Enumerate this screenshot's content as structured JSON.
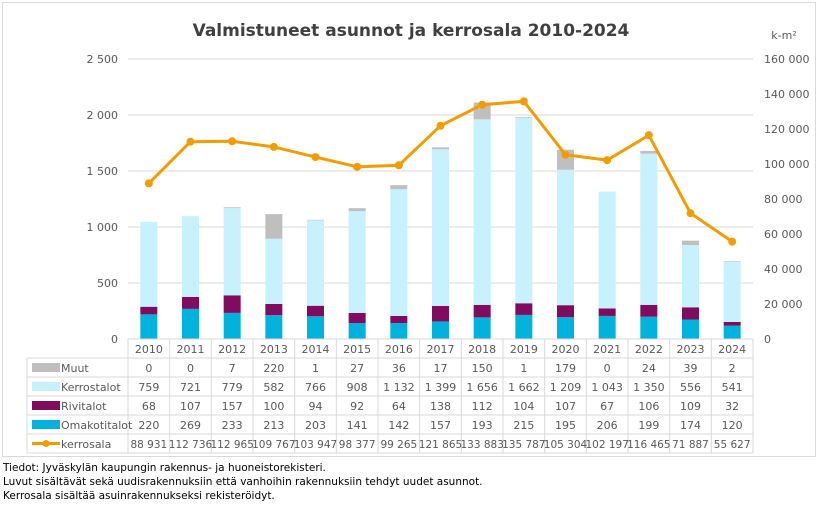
{
  "chart_data": {
    "type": "bar",
    "stacked": true,
    "title": "Valmistuneet asunnot ja kerrosala 2010-2024",
    "xlabel": "",
    "ylabel": "",
    "y2label": "k-m²",
    "categories": [
      "2010",
      "2011",
      "2012",
      "2013",
      "2014",
      "2015",
      "2016",
      "2017",
      "2018",
      "2019",
      "2020",
      "2021",
      "2022",
      "2023",
      "2024"
    ],
    "ylim": [
      0,
      2500
    ],
    "yticks": [
      0,
      500,
      1000,
      1500,
      2000,
      2500
    ],
    "ytick_labels": [
      "0",
      "500",
      "1 000",
      "1 500",
      "2 000",
      "2 500"
    ],
    "y2lim": [
      0,
      160000
    ],
    "y2ticks": [
      0,
      20000,
      40000,
      60000,
      80000,
      100000,
      120000,
      140000,
      160000
    ],
    "y2tick_labels": [
      "0",
      "20 000",
      "40 000",
      "60 000",
      "80 000",
      "100 000",
      "120 000",
      "140 000",
      "160 000"
    ],
    "grid": true,
    "legend_placement": "data-table-below",
    "series": [
      {
        "name": "Muut",
        "type": "bar",
        "axis": "left",
        "color": "#bfbfbf",
        "values": [
          0,
          0,
          7,
          220,
          1,
          27,
          36,
          17,
          150,
          1,
          179,
          0,
          24,
          39,
          2
        ],
        "labels": [
          "0",
          "0",
          "7",
          "220",
          "1",
          "27",
          "36",
          "17",
          "150",
          "1",
          "179",
          "0",
          "24",
          "39",
          "2"
        ]
      },
      {
        "name": "Kerrostalot",
        "type": "bar",
        "axis": "left",
        "color": "#c7f1fc",
        "values": [
          759,
          721,
          779,
          582,
          766,
          908,
          1132,
          1399,
          1656,
          1662,
          1209,
          1043,
          1350,
          556,
          541
        ],
        "labels": [
          "759",
          "721",
          "779",
          "582",
          "766",
          "908",
          "1 132",
          "1 399",
          "1 656",
          "1 662",
          "1 209",
          "1 043",
          "1 350",
          "556",
          "541"
        ]
      },
      {
        "name": "Rivitalot",
        "type": "bar",
        "axis": "left",
        "color": "#7f0c5e",
        "values": [
          68,
          107,
          157,
          100,
          94,
          92,
          64,
          138,
          112,
          104,
          107,
          67,
          106,
          109,
          32
        ],
        "labels": [
          "68",
          "107",
          "157",
          "100",
          "94",
          "92",
          "64",
          "138",
          "112",
          "104",
          "107",
          "67",
          "106",
          "109",
          "32"
        ]
      },
      {
        "name": "Omakotitalot",
        "type": "bar",
        "axis": "left",
        "color": "#00b2dc",
        "values": [
          220,
          269,
          233,
          213,
          203,
          141,
          142,
          157,
          193,
          215,
          195,
          206,
          199,
          174,
          120
        ],
        "labels": [
          "220",
          "269",
          "233",
          "213",
          "203",
          "141",
          "142",
          "157",
          "193",
          "215",
          "195",
          "206",
          "199",
          "174",
          "120"
        ]
      },
      {
        "name": "kerrosala",
        "type": "line",
        "axis": "right",
        "color": "#f39c00",
        "values": [
          88931,
          112736,
          112965,
          109767,
          103947,
          98377,
          99265,
          121865,
          133883,
          135787,
          105304,
          102197,
          116465,
          71887,
          55627
        ],
        "labels": [
          "88 931",
          "112 736",
          "112 965",
          "109 767",
          "103 947",
          "98 377",
          "99 265",
          "121 865",
          "133 883",
          "135 787",
          "105 304",
          "102 197",
          "116 465",
          "71 887",
          "55 627"
        ]
      }
    ],
    "stack_order_bottom_to_top": [
      "Omakotitalot",
      "Rivitalot",
      "Kerrostalot",
      "Muut"
    ]
  },
  "footnotes": [
    "Tiedot: Jyväskylän kaupungin rakennus- ja huoneistorekisteri.",
    "Luvut sisältävät sekä uudisrakennuksiin että vanhoihin rakennuksiin tehdyt uudet asunnot.",
    "Kerrosala sisältää asuinrakennukseksi rekisteröidyt."
  ]
}
